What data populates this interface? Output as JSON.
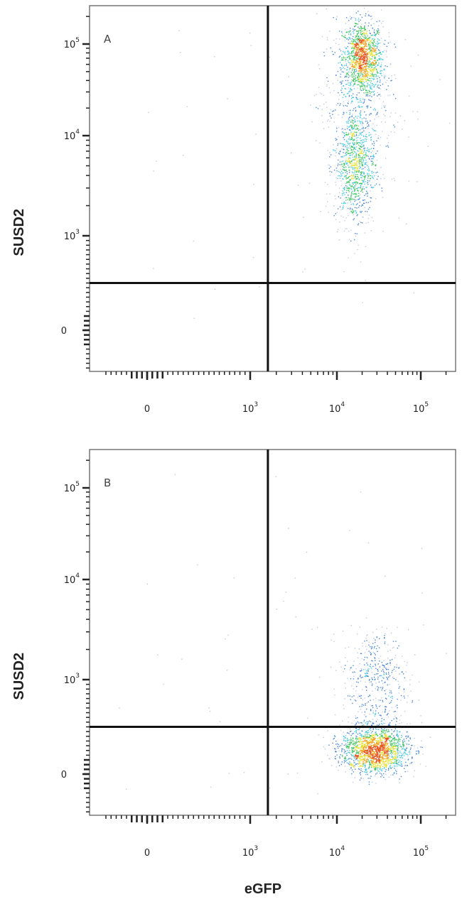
{
  "chart_data": {
    "type": "scatter",
    "subtype": "flow cytometry density dot plot",
    "x_label": "eGFP",
    "y_label": "SUSD2",
    "x_scale": "biexponential",
    "y_scale": "biexponential",
    "x_ticks": [
      {
        "label": "0",
        "value": 0
      },
      {
        "base": "10",
        "exp": "3",
        "value": 1000
      },
      {
        "base": "10",
        "exp": "4",
        "value": 10000
      },
      {
        "base": "10",
        "exp": "5",
        "value": 100000
      }
    ],
    "y_ticks": [
      {
        "label": "0",
        "value": 0
      },
      {
        "base": "10",
        "exp": "3",
        "value": 1000
      },
      {
        "base": "10",
        "exp": "4",
        "value": 10000
      },
      {
        "base": "10",
        "exp": "5",
        "value": 100000
      }
    ],
    "colormap": [
      "#1a3a9c",
      "#3a7bd5",
      "#3fc6e0",
      "#35c25a",
      "#e6e02a",
      "#f2a21f",
      "#e8521c"
    ],
    "gate_color": "#111111",
    "panels": [
      {
        "label": "A",
        "gate": {
          "x": 1600,
          "y": 500
        },
        "populations": [
          {
            "x_center": 20000,
            "y_center": 70000,
            "x_spread_decades": 0.12,
            "y_spread_decades": 0.2,
            "relative_count": 1200
          },
          {
            "x_center": 16000,
            "y_center": 5000,
            "x_spread_decades": 0.12,
            "y_spread_decades": 0.3,
            "relative_count": 900
          },
          {
            "x_center": 18000,
            "y_center": 25000,
            "x_spread_decades": 0.25,
            "y_spread_decades": 0.5,
            "relative_count": 400
          }
        ]
      },
      {
        "label": "B",
        "gate": {
          "x": 1600,
          "y": 500
        },
        "populations": [
          {
            "x_center": 28000,
            "y_center": 250,
            "x_spread_decades": 0.2,
            "y_spread_linear": 120,
            "relative_count": 1600
          },
          {
            "x_center": 28000,
            "y_center": 1000,
            "x_spread_decades": 0.2,
            "y_spread_decades": 0.25,
            "relative_count": 500
          }
        ]
      }
    ]
  }
}
